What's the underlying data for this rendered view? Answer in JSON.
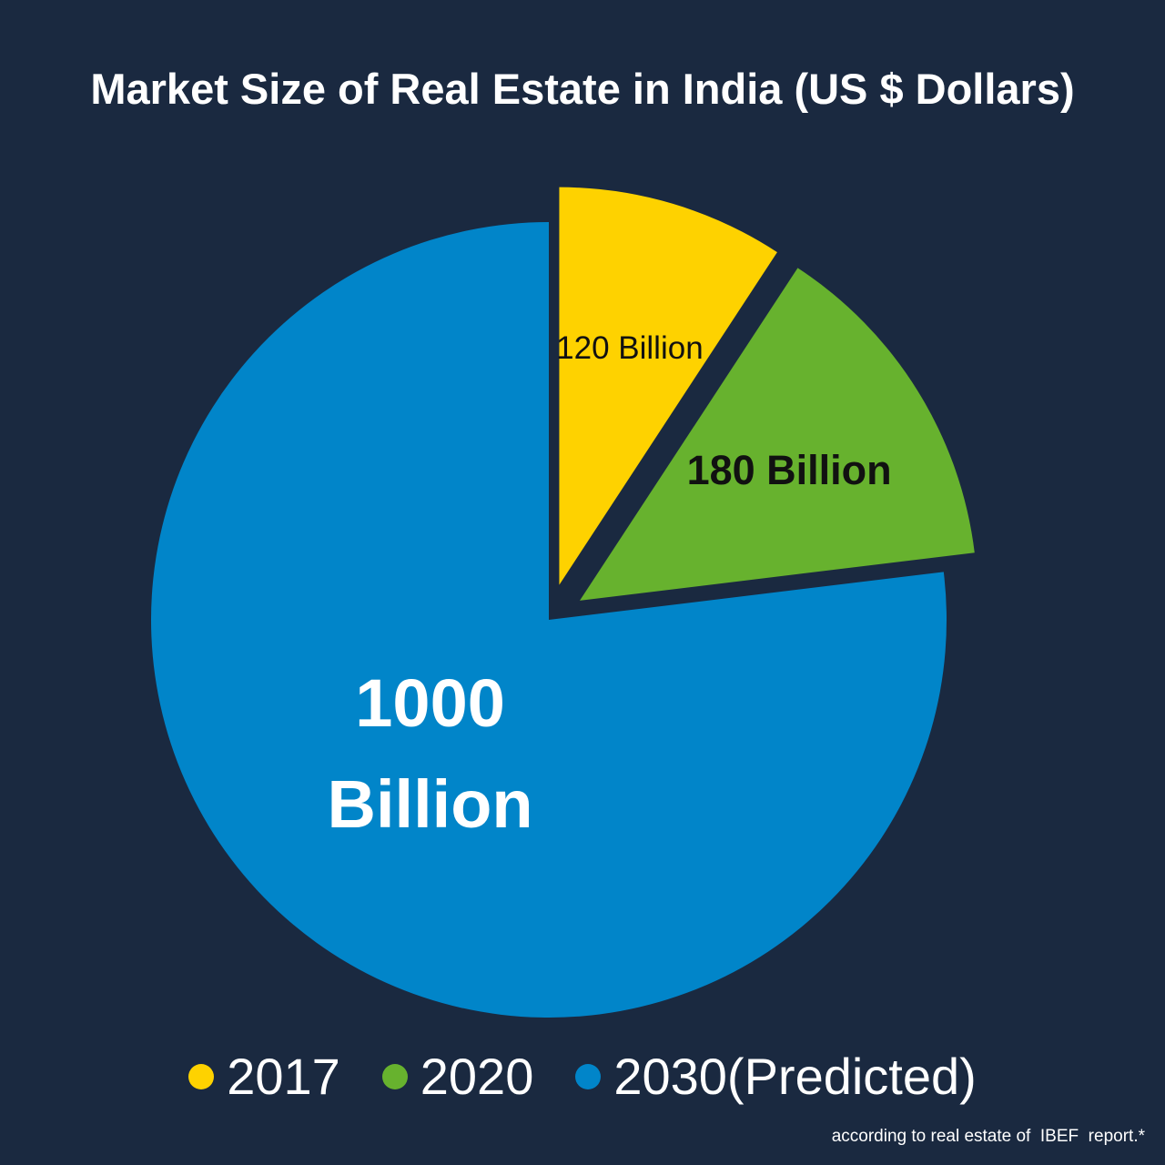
{
  "chart_data": {
    "type": "pie",
    "title": "Market Size of Real Estate in India (US $ Dollars)",
    "categories": [
      "2017",
      "2020",
      "2030(Predicted)"
    ],
    "values": [
      120,
      180,
      1000
    ],
    "value_labels": [
      "120 Billion",
      "180 Billion",
      "1000 Billion"
    ],
    "colors": [
      "#fed200",
      "#67b22e",
      "#0185c9"
    ],
    "exploded": [
      true,
      true,
      false
    ],
    "note": "according to real estate of  IBEF  report.*"
  }
}
